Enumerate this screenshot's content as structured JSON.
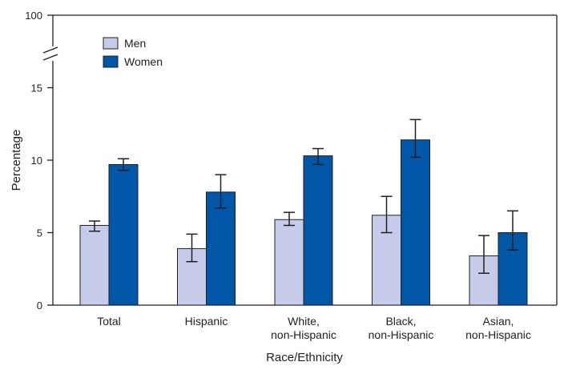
{
  "chart_data": {
    "type": "bar",
    "title": "",
    "xlabel": "Race/Ethnicity",
    "ylabel": "Percentage",
    "ylim": [
      0,
      100
    ],
    "axis_break": {
      "from": 17.5,
      "to": 100
    },
    "yticks": [
      "0",
      "5",
      "10",
      "15",
      "100"
    ],
    "categories": [
      [
        "Total"
      ],
      [
        "Hispanic"
      ],
      [
        "White,",
        "non-Hispanic"
      ],
      [
        "Black,",
        "non-Hispanic"
      ],
      [
        "Asian,",
        "non-Hispanic"
      ]
    ],
    "series": [
      {
        "name": "Men",
        "color": "#c5cbe8",
        "values": [
          5.5,
          3.9,
          5.9,
          6.2,
          3.4
        ],
        "ci_lower": [
          5.1,
          3.0,
          5.5,
          5.0,
          2.2
        ],
        "ci_upper": [
          5.8,
          4.9,
          6.4,
          7.5,
          4.8
        ]
      },
      {
        "name": "Women",
        "color": "#0057a8",
        "values": [
          9.7,
          7.8,
          10.3,
          11.4,
          5.0
        ],
        "ci_lower": [
          9.3,
          6.7,
          9.7,
          10.2,
          3.8
        ],
        "ci_upper": [
          10.1,
          9.0,
          10.8,
          12.8,
          6.5
        ]
      }
    ],
    "legend_position": "top-left",
    "grid": false
  }
}
